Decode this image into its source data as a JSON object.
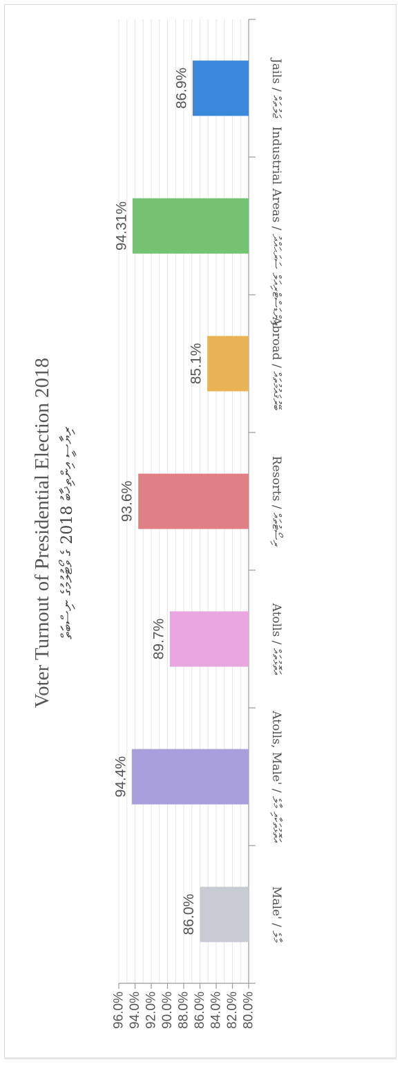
{
  "chart_data": {
    "type": "bar",
    "title": "Voter Turnout of Presidential Election 2018",
    "subtitle": "ރިޔާސީ އިންތިޚާބު 2018 ގެ ވޯޓުލުމުގެ ނިސްބަތް",
    "categories": [
      "Male' / މާލެ",
      "Atolls, Male' / އަތޮޅުތަކާއި މާލެ",
      "Atolls / އަތޮޅުތައް",
      "Resorts / ރިސޯޓުތައް",
      "Abroad / ބޭރުޤައުމުތައް",
      "Industrial Areas / އިންޑަސްޓްރިއަލް ސަރަޙައްދު",
      "Jails / ޖަލުތައް"
    ],
    "values": [
      86.0,
      94.4,
      89.7,
      93.6,
      85.1,
      94.31,
      86.9
    ],
    "data_labels": [
      "86.0%",
      "94.4%",
      "89.7%",
      "93.6%",
      "85.1%",
      "94.31%",
      "86.9%"
    ],
    "colors": [
      "#c7ccd4",
      "#a89fdc",
      "#e9a6df",
      "#e07f85",
      "#e8b455",
      "#74c473",
      "#3a87dc"
    ],
    "ylim": [
      80,
      96
    ],
    "y_ticks": [
      "80.0%",
      "82.0%",
      "84.0%",
      "86.0%",
      "88.0%",
      "90.0%",
      "92.0%",
      "94.0%",
      "96.0%"
    ],
    "xlabel": "",
    "ylabel": "",
    "grid": true,
    "orientation": "rotated 90° counter-clockwise (page is landscape chart rotated)"
  }
}
